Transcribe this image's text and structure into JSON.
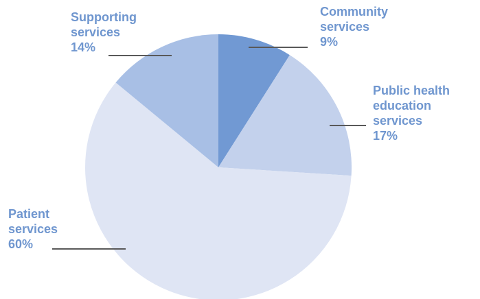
{
  "chart_data": {
    "type": "pie",
    "title": "",
    "slices": [
      {
        "label_lines": [
          "Community",
          "services"
        ],
        "value": 9,
        "value_label": "9%",
        "color": "#7199d3"
      },
      {
        "label_lines": [
          "Public health",
          "education",
          "services"
        ],
        "value": 17,
        "value_label": "17%",
        "color": "#c3d1ec"
      },
      {
        "label_lines": [
          "Patient",
          "services"
        ],
        "value": 60,
        "value_label": "60%",
        "color": "#dfe5f4"
      },
      {
        "label_lines": [
          "Supporting",
          "services"
        ],
        "value": 14,
        "value_label": "14%",
        "color": "#a8bfe5"
      }
    ],
    "start": "top, clockwise",
    "legend": "none (callout labels)"
  },
  "colors": {
    "label_text": "#6f96cf",
    "leader_line": "#595959"
  }
}
